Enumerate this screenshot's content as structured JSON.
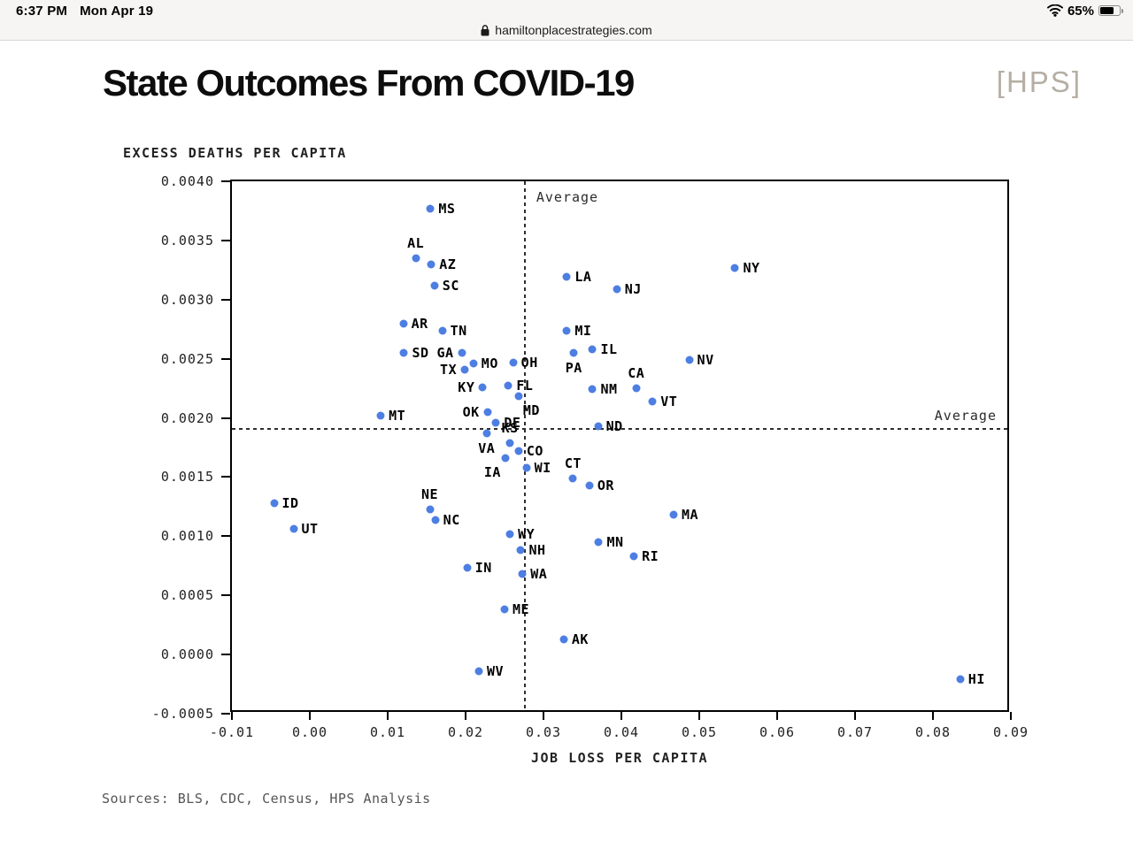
{
  "status_bar": {
    "time": "6:37 PM",
    "date": "Mon Apr 19",
    "battery": "65%"
  },
  "browser": {
    "url": "hamiltonplacestrategies.com"
  },
  "page": {
    "title": "State Outcomes From COVID-19",
    "logo": "[HPS]",
    "sources": "Sources: BLS, CDC, Census, HPS Analysis"
  },
  "chart_data": {
    "type": "scatter",
    "title": "State Outcomes From COVID-19",
    "xlabel": "JOB LOSS PER CAPITA",
    "ylabel": "EXCESS DEATHS PER CAPITA",
    "xlim": [
      -0.01,
      0.09
    ],
    "ylim": [
      -0.0005,
      0.004
    ],
    "x_ticks": [
      "-0.01",
      "0.00",
      "0.01",
      "0.02",
      "0.03",
      "0.04",
      "0.05",
      "0.06",
      "0.07",
      "0.08",
      "0.09"
    ],
    "y_ticks": [
      "0.0040",
      "0.0035",
      "0.0030",
      "0.0025",
      "0.0020",
      "0.0015",
      "0.0010",
      "0.0005",
      "0.0000",
      "-0.0005"
    ],
    "grid": false,
    "average_label": "Average",
    "average_x": 0.0276,
    "average_y": 0.00191,
    "dot_color": "#4d7ee2",
    "points": [
      {
        "state": "MS",
        "x": 0.0155,
        "y": 0.00377,
        "label_pos": "r"
      },
      {
        "state": "AL",
        "x": 0.0136,
        "y": 0.00335,
        "label_pos": "a"
      },
      {
        "state": "AZ",
        "x": 0.0156,
        "y": 0.0033,
        "label_pos": "r"
      },
      {
        "state": "SC",
        "x": 0.016,
        "y": 0.00312,
        "label_pos": "r"
      },
      {
        "state": "NY",
        "x": 0.0546,
        "y": 0.00327,
        "label_pos": "r"
      },
      {
        "state": "LA",
        "x": 0.033,
        "y": 0.00319,
        "label_pos": "r"
      },
      {
        "state": "NJ",
        "x": 0.0394,
        "y": 0.00309,
        "label_pos": "r"
      },
      {
        "state": "AR",
        "x": 0.012,
        "y": 0.0028,
        "label_pos": "r"
      },
      {
        "state": "TN",
        "x": 0.017,
        "y": 0.00274,
        "label_pos": "r"
      },
      {
        "state": "MI",
        "x": 0.033,
        "y": 0.00274,
        "label_pos": "r"
      },
      {
        "state": "IL",
        "x": 0.0363,
        "y": 0.00258,
        "label_pos": "r"
      },
      {
        "state": "SD",
        "x": 0.0121,
        "y": 0.00255,
        "label_pos": "r"
      },
      {
        "state": "GA",
        "x": 0.0195,
        "y": 0.00255,
        "label_pos": "l"
      },
      {
        "state": "PA",
        "x": 0.0339,
        "y": 0.00255,
        "label_pos": "b"
      },
      {
        "state": "NV",
        "x": 0.0487,
        "y": 0.00249,
        "label_pos": "r"
      },
      {
        "state": "OH",
        "x": 0.0261,
        "y": 0.00247,
        "label_pos": "r"
      },
      {
        "state": "MO",
        "x": 0.021,
        "y": 0.00246,
        "label_pos": "r"
      },
      {
        "state": "TX",
        "x": 0.0199,
        "y": 0.00241,
        "label_pos": "l"
      },
      {
        "state": "FL",
        "x": 0.0255,
        "y": 0.00227,
        "label_pos": "r"
      },
      {
        "state": "KY",
        "x": 0.0222,
        "y": 0.00226,
        "label_pos": "l"
      },
      {
        "state": "CA",
        "x": 0.0419,
        "y": 0.00225,
        "label_pos": "a"
      },
      {
        "state": "NM",
        "x": 0.0363,
        "y": 0.00224,
        "label_pos": "r"
      },
      {
        "state": "MD",
        "x": 0.0268,
        "y": 0.00218,
        "label_pos": "br"
      },
      {
        "state": "VT",
        "x": 0.044,
        "y": 0.00214,
        "label_pos": "r"
      },
      {
        "state": "OK",
        "x": 0.0228,
        "y": 0.00205,
        "label_pos": "l"
      },
      {
        "state": "MT",
        "x": 0.0091,
        "y": 0.00202,
        "label_pos": "r"
      },
      {
        "state": "DE",
        "x": 0.0239,
        "y": 0.00196,
        "label_pos": "r"
      },
      {
        "state": "ND",
        "x": 0.037,
        "y": 0.00193,
        "label_pos": "r"
      },
      {
        "state": "VA",
        "x": 0.0227,
        "y": 0.00187,
        "label_pos": "b"
      },
      {
        "state": "KS",
        "x": 0.0257,
        "y": 0.00179,
        "label_pos": "a"
      },
      {
        "state": "CO",
        "x": 0.0268,
        "y": 0.00172,
        "label_pos": "r"
      },
      {
        "state": "IA",
        "x": 0.0251,
        "y": 0.00166,
        "label_pos": "bl"
      },
      {
        "state": "WI",
        "x": 0.0278,
        "y": 0.00158,
        "label_pos": "r"
      },
      {
        "state": "CT",
        "x": 0.0338,
        "y": 0.00149,
        "label_pos": "a"
      },
      {
        "state": "OR",
        "x": 0.0359,
        "y": 0.00143,
        "label_pos": "r"
      },
      {
        "state": "ID",
        "x": -0.0046,
        "y": 0.00128,
        "label_pos": "r"
      },
      {
        "state": "NE",
        "x": 0.0154,
        "y": 0.00123,
        "label_pos": "a"
      },
      {
        "state": "MA",
        "x": 0.0467,
        "y": 0.00118,
        "label_pos": "r"
      },
      {
        "state": "NC",
        "x": 0.0161,
        "y": 0.00114,
        "label_pos": "r"
      },
      {
        "state": "UT",
        "x": -0.0021,
        "y": 0.00106,
        "label_pos": "r"
      },
      {
        "state": "WY",
        "x": 0.0257,
        "y": 0.00102,
        "label_pos": "r"
      },
      {
        "state": "MN",
        "x": 0.0371,
        "y": 0.00095,
        "label_pos": "r"
      },
      {
        "state": "NH",
        "x": 0.0271,
        "y": 0.00088,
        "label_pos": "r"
      },
      {
        "state": "RI",
        "x": 0.0416,
        "y": 0.00083,
        "label_pos": "r"
      },
      {
        "state": "IN",
        "x": 0.0202,
        "y": 0.00073,
        "label_pos": "r"
      },
      {
        "state": "WA",
        "x": 0.0273,
        "y": 0.00068,
        "label_pos": "r"
      },
      {
        "state": "ME",
        "x": 0.025,
        "y": 0.00038,
        "label_pos": "r"
      },
      {
        "state": "AK",
        "x": 0.0326,
        "y": 0.00013,
        "label_pos": "r"
      },
      {
        "state": "WV",
        "x": 0.0217,
        "y": -0.00014,
        "label_pos": "r"
      },
      {
        "state": "HI",
        "x": 0.0835,
        "y": -0.00021,
        "label_pos": "r"
      }
    ]
  }
}
